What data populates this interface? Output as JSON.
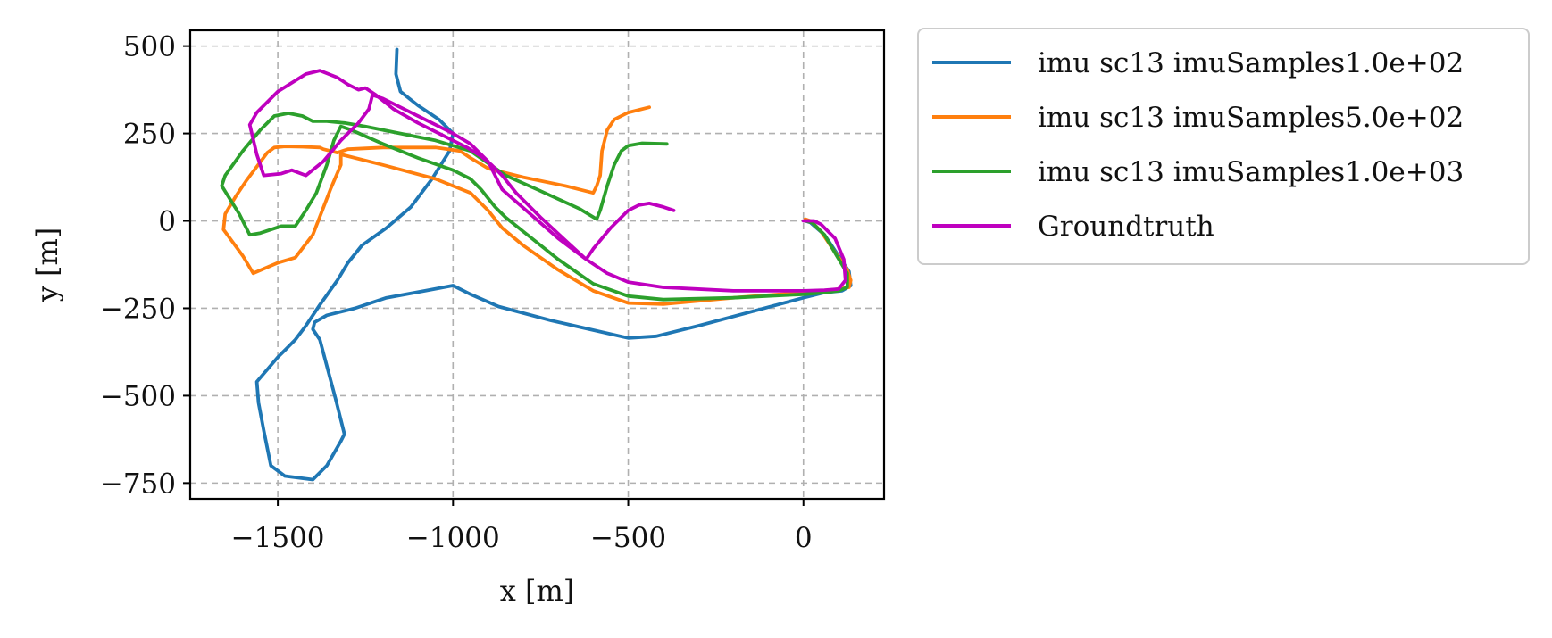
{
  "chart_data": {
    "type": "line",
    "xlabel": "x [m]",
    "ylabel": "y [m]",
    "xlim": [
      -1750,
      230
    ],
    "ylim": [
      -795,
      545
    ],
    "xticks": [
      -1500,
      -1000,
      -500,
      0
    ],
    "xtick_labels": [
      "−1500",
      "−1000",
      "−500",
      "0"
    ],
    "yticks": [
      500,
      250,
      0,
      -250,
      -500,
      -750
    ],
    "ytick_labels": [
      "500",
      "250",
      "0",
      "−250",
      "−500",
      "−750"
    ],
    "grid": true,
    "legend_position": "outside-top-right",
    "series": [
      {
        "name": "imu sc13 imuSamples1.0e+02",
        "color": "#1f77b4",
        "points": [
          [
            -1160,
            490
          ],
          [
            -1163,
            420
          ],
          [
            -1150,
            370
          ],
          [
            -1100,
            330
          ],
          [
            -1040,
            290
          ],
          [
            -1000,
            250
          ],
          [
            -1010,
            200
          ],
          [
            -1060,
            120
          ],
          [
            -1120,
            40
          ],
          [
            -1190,
            -20
          ],
          [
            -1260,
            -70
          ],
          [
            -1300,
            -120
          ],
          [
            -1330,
            -170
          ],
          [
            -1380,
            -240
          ],
          [
            -1420,
            -300
          ],
          [
            -1450,
            -340
          ],
          [
            -1470,
            -360
          ],
          [
            -1480,
            -370
          ],
          [
            -1500,
            -390
          ],
          [
            -1560,
            -460
          ],
          [
            -1555,
            -520
          ],
          [
            -1540,
            -600
          ],
          [
            -1520,
            -700
          ],
          [
            -1480,
            -730
          ],
          [
            -1400,
            -740
          ],
          [
            -1360,
            -700
          ],
          [
            -1320,
            -630
          ],
          [
            -1310,
            -610
          ],
          [
            -1335,
            -510
          ],
          [
            -1380,
            -340
          ],
          [
            -1400,
            -310
          ],
          [
            -1395,
            -290
          ],
          [
            -1360,
            -270
          ],
          [
            -1280,
            -250
          ],
          [
            -1190,
            -220
          ],
          [
            -1080,
            -200
          ],
          [
            -1000,
            -185
          ],
          [
            -950,
            -210
          ],
          [
            -870,
            -245
          ],
          [
            -720,
            -285
          ],
          [
            -500,
            -335
          ],
          [
            -420,
            -330
          ],
          [
            -300,
            -300
          ],
          [
            -150,
            -260
          ],
          [
            0,
            -220
          ],
          [
            60,
            -205
          ],
          [
            110,
            -200
          ],
          [
            135,
            -185
          ],
          [
            130,
            -145
          ],
          [
            100,
            -100
          ],
          [
            60,
            -40
          ],
          [
            20,
            -5
          ],
          [
            5,
            0
          ]
        ]
      },
      {
        "name": "imu sc13 imuSamples5.0e+02",
        "color": "#ff7f0e",
        "points": [
          [
            -440,
            325
          ],
          [
            -500,
            310
          ],
          [
            -540,
            290
          ],
          [
            -560,
            260
          ],
          [
            -575,
            200
          ],
          [
            -580,
            130
          ],
          [
            -590,
            100
          ],
          [
            -600,
            80
          ],
          [
            -680,
            100
          ],
          [
            -800,
            125
          ],
          [
            -900,
            150
          ],
          [
            -950,
            180
          ],
          [
            -980,
            200
          ],
          [
            -1050,
            210
          ],
          [
            -1200,
            210
          ],
          [
            -1300,
            205
          ],
          [
            -1330,
            195
          ],
          [
            -1370,
            205
          ],
          [
            -1380,
            210
          ],
          [
            -1430,
            212
          ],
          [
            -1480,
            213
          ],
          [
            -1510,
            210
          ],
          [
            -1530,
            195
          ],
          [
            -1560,
            155
          ],
          [
            -1590,
            115
          ],
          [
            -1620,
            70
          ],
          [
            -1650,
            20
          ],
          [
            -1655,
            -25
          ],
          [
            -1600,
            -100
          ],
          [
            -1570,
            -150
          ],
          [
            -1500,
            -120
          ],
          [
            -1450,
            -105
          ],
          [
            -1400,
            -40
          ],
          [
            -1350,
            90
          ],
          [
            -1320,
            160
          ],
          [
            -1320,
            190
          ],
          [
            -1300,
            185
          ],
          [
            -1200,
            160
          ],
          [
            -1050,
            120
          ],
          [
            -950,
            80
          ],
          [
            -900,
            30
          ],
          [
            -860,
            -20
          ],
          [
            -800,
            -70
          ],
          [
            -700,
            -140
          ],
          [
            -600,
            -200
          ],
          [
            -500,
            -235
          ],
          [
            -400,
            -238
          ],
          [
            -200,
            -220
          ],
          [
            0,
            -205
          ],
          [
            60,
            -200
          ],
          [
            100,
            -195
          ],
          [
            130,
            -190
          ],
          [
            135,
            -170
          ],
          [
            125,
            -140
          ],
          [
            90,
            -90
          ],
          [
            50,
            -30
          ],
          [
            20,
            0
          ],
          [
            5,
            5
          ]
        ]
      },
      {
        "name": "imu sc13 imuSamples1.0e+03",
        "color": "#2ca02c",
        "points": [
          [
            -390,
            220
          ],
          [
            -460,
            222
          ],
          [
            -500,
            215
          ],
          [
            -520,
            200
          ],
          [
            -540,
            160
          ],
          [
            -560,
            100
          ],
          [
            -580,
            30
          ],
          [
            -590,
            5
          ],
          [
            -640,
            35
          ],
          [
            -760,
            90
          ],
          [
            -850,
            130
          ],
          [
            -900,
            165
          ],
          [
            -950,
            200
          ],
          [
            -1050,
            230
          ],
          [
            -1150,
            250
          ],
          [
            -1250,
            270
          ],
          [
            -1310,
            280
          ],
          [
            -1360,
            285
          ],
          [
            -1400,
            285
          ],
          [
            -1430,
            300
          ],
          [
            -1470,
            308
          ],
          [
            -1510,
            300
          ],
          [
            -1550,
            260
          ],
          [
            -1600,
            200
          ],
          [
            -1650,
            130
          ],
          [
            -1660,
            100
          ],
          [
            -1610,
            20
          ],
          [
            -1580,
            -40
          ],
          [
            -1550,
            -35
          ],
          [
            -1490,
            -15
          ],
          [
            -1450,
            -15
          ],
          [
            -1420,
            30
          ],
          [
            -1390,
            80
          ],
          [
            -1360,
            160
          ],
          [
            -1340,
            230
          ],
          [
            -1320,
            270
          ],
          [
            -1290,
            260
          ],
          [
            -1200,
            220
          ],
          [
            -1100,
            180
          ],
          [
            -1000,
            145
          ],
          [
            -950,
            120
          ],
          [
            -920,
            90
          ],
          [
            -880,
            40
          ],
          [
            -850,
            10
          ],
          [
            -800,
            -30
          ],
          [
            -700,
            -110
          ],
          [
            -600,
            -180
          ],
          [
            -500,
            -215
          ],
          [
            -400,
            -225
          ],
          [
            -200,
            -220
          ],
          [
            0,
            -210
          ],
          [
            60,
            -205
          ],
          [
            100,
            -200
          ],
          [
            125,
            -190
          ],
          [
            125,
            -150
          ],
          [
            95,
            -100
          ],
          [
            60,
            -40
          ],
          [
            25,
            -5
          ],
          [
            5,
            0
          ]
        ]
      },
      {
        "name": "Groundtruth",
        "color": "#bf00bf",
        "points": [
          [
            -370,
            30
          ],
          [
            -400,
            40
          ],
          [
            -440,
            50
          ],
          [
            -470,
            45
          ],
          [
            -500,
            30
          ],
          [
            -550,
            -20
          ],
          [
            -600,
            -80
          ],
          [
            -620,
            -110
          ],
          [
            -680,
            -55
          ],
          [
            -750,
            10
          ],
          [
            -820,
            80
          ],
          [
            -860,
            130
          ],
          [
            -890,
            160
          ],
          [
            -920,
            185
          ],
          [
            -960,
            210
          ],
          [
            -1020,
            240
          ],
          [
            -1100,
            280
          ],
          [
            -1170,
            320
          ],
          [
            -1220,
            360
          ],
          [
            -1250,
            380
          ],
          [
            -1270,
            375
          ],
          [
            -1300,
            390
          ],
          [
            -1330,
            410
          ],
          [
            -1380,
            430
          ],
          [
            -1420,
            420
          ],
          [
            -1500,
            370
          ],
          [
            -1560,
            310
          ],
          [
            -1580,
            275
          ],
          [
            -1560,
            190
          ],
          [
            -1540,
            130
          ],
          [
            -1490,
            135
          ],
          [
            -1460,
            145
          ],
          [
            -1420,
            130
          ],
          [
            -1370,
            170
          ],
          [
            -1320,
            230
          ],
          [
            -1270,
            280
          ],
          [
            -1240,
            320
          ],
          [
            -1230,
            360
          ],
          [
            -1200,
            350
          ],
          [
            -1100,
            300
          ],
          [
            -1000,
            250
          ],
          [
            -950,
            220
          ],
          [
            -900,
            170
          ],
          [
            -860,
            90
          ],
          [
            -780,
            20
          ],
          [
            -700,
            -50
          ],
          [
            -620,
            -110
          ],
          [
            -560,
            -150
          ],
          [
            -500,
            -175
          ],
          [
            -400,
            -190
          ],
          [
            -200,
            -200
          ],
          [
            0,
            -200
          ],
          [
            60,
            -198
          ],
          [
            100,
            -195
          ],
          [
            120,
            -170
          ],
          [
            115,
            -110
          ],
          [
            90,
            -50
          ],
          [
            50,
            -10
          ],
          [
            30,
            0
          ],
          [
            0,
            0
          ]
        ]
      }
    ]
  }
}
